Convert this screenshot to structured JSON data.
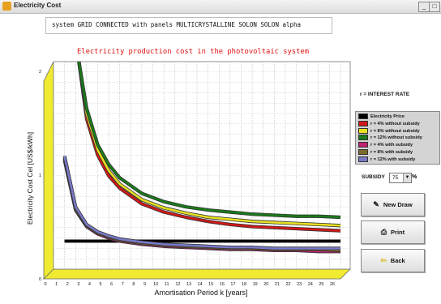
{
  "window": {
    "title": "Electricity Cost",
    "controls": [
      "_",
      "□",
      "x"
    ]
  },
  "system_line": "system  GRID CONNECTED  with panels MULTICRYSTALLINE SOLON SOLON alpha",
  "side": {
    "interest_label": "r = INTEREST RATE",
    "legend": [
      {
        "label": "Electricity Price",
        "color": "#000000"
      },
      {
        "label": "r = 4%  without subsidy",
        "color": "#d01818"
      },
      {
        "label": "r = 8%  without subsidy",
        "color": "#e8e020"
      },
      {
        "label": "r = 12% without subsidy",
        "color": "#1a7a1a"
      },
      {
        "label": "r = 4%  with subsidy",
        "color": "#c02070"
      },
      {
        "label": "r = 8%  with subsidy",
        "color": "#7a6a2a"
      },
      {
        "label": "r = 12% with subsidy",
        "color": "#7878c8"
      }
    ],
    "subsidy_label": "SUBSIDY",
    "subsidy_value": "75",
    "subsidy_unit": "%",
    "buttons": {
      "new_draw": "New Draw",
      "print": "Print",
      "back": "Back"
    },
    "icons": {
      "new_draw": "pencil-icon",
      "print": "printer-icon",
      "back": "arrow-left-icon"
    }
  },
  "chart_data": {
    "type": "line",
    "title": "Electricity production cost in the photovoltaic system",
    "xlabel": "Amortisation Period k [years]",
    "ylabel": "Electricity Cost Cel [US$/kWh]",
    "xlim": [
      0,
      26
    ],
    "ylim": [
      0,
      2
    ],
    "xticks": [
      0,
      1,
      2,
      3,
      4,
      5,
      6,
      7,
      8,
      9,
      10,
      11,
      12,
      13,
      14,
      15,
      16,
      17,
      18,
      19,
      20,
      21,
      22,
      23,
      24,
      25,
      26
    ],
    "yticks": [
      0,
      1,
      2
    ],
    "grid": true,
    "series": [
      {
        "name": "Electricity Price",
        "color": "#000000",
        "x": [
          1,
          26
        ],
        "y": [
          0.27,
          0.27
        ]
      },
      {
        "name": "r = 4%  without subsidy",
        "color": "#d01818",
        "x": [
          2.3,
          3,
          4,
          5,
          6,
          8,
          10,
          12,
          14,
          16,
          18,
          20,
          22,
          24,
          26
        ],
        "y": [
          2.0,
          1.45,
          1.1,
          0.9,
          0.78,
          0.63,
          0.55,
          0.5,
          0.46,
          0.43,
          0.41,
          0.4,
          0.39,
          0.38,
          0.37
        ]
      },
      {
        "name": "r = 8%  without subsidy",
        "color": "#e8e020",
        "x": [
          2.3,
          3,
          4,
          5,
          6,
          8,
          10,
          12,
          14,
          16,
          18,
          20,
          22,
          24,
          26
        ],
        "y": [
          2.0,
          1.5,
          1.15,
          0.95,
          0.82,
          0.67,
          0.59,
          0.54,
          0.5,
          0.48,
          0.46,
          0.45,
          0.44,
          0.43,
          0.42
        ]
      },
      {
        "name": "r = 12% without subsidy",
        "color": "#1a7a1a",
        "x": [
          2.3,
          3,
          4,
          5,
          6,
          8,
          10,
          12,
          14,
          16,
          18,
          20,
          22,
          24,
          26
        ],
        "y": [
          2.0,
          1.55,
          1.2,
          1.01,
          0.88,
          0.73,
          0.65,
          0.6,
          0.57,
          0.55,
          0.53,
          0.52,
          0.51,
          0.51,
          0.5
        ]
      },
      {
        "name": "r = 4%  with subsidy",
        "color": "#c02070",
        "x": [
          1,
          2,
          3,
          4,
          5,
          6,
          8,
          10,
          12,
          14,
          16,
          18,
          20,
          22,
          24,
          26
        ],
        "y": [
          1.05,
          0.57,
          0.41,
          0.34,
          0.3,
          0.27,
          0.24,
          0.22,
          0.21,
          0.2,
          0.19,
          0.19,
          0.18,
          0.18,
          0.17,
          0.17
        ]
      },
      {
        "name": "r = 8%  with subsidy",
        "color": "#7a6a2a",
        "x": [
          1,
          2,
          3,
          4,
          5,
          6,
          8,
          10,
          12,
          14,
          16,
          18,
          20,
          22,
          24,
          26
        ],
        "y": [
          1.07,
          0.58,
          0.42,
          0.35,
          0.31,
          0.28,
          0.25,
          0.23,
          0.22,
          0.21,
          0.2,
          0.2,
          0.19,
          0.19,
          0.19,
          0.18
        ]
      },
      {
        "name": "r = 12% with subsidy",
        "color": "#7878c8",
        "x": [
          1,
          2,
          3,
          4,
          5,
          6,
          8,
          10,
          12,
          14,
          16,
          18,
          20,
          22,
          24,
          26
        ],
        "y": [
          1.09,
          0.6,
          0.43,
          0.36,
          0.32,
          0.29,
          0.26,
          0.24,
          0.23,
          0.22,
          0.21,
          0.21,
          0.2,
          0.2,
          0.2,
          0.2
        ]
      }
    ]
  }
}
